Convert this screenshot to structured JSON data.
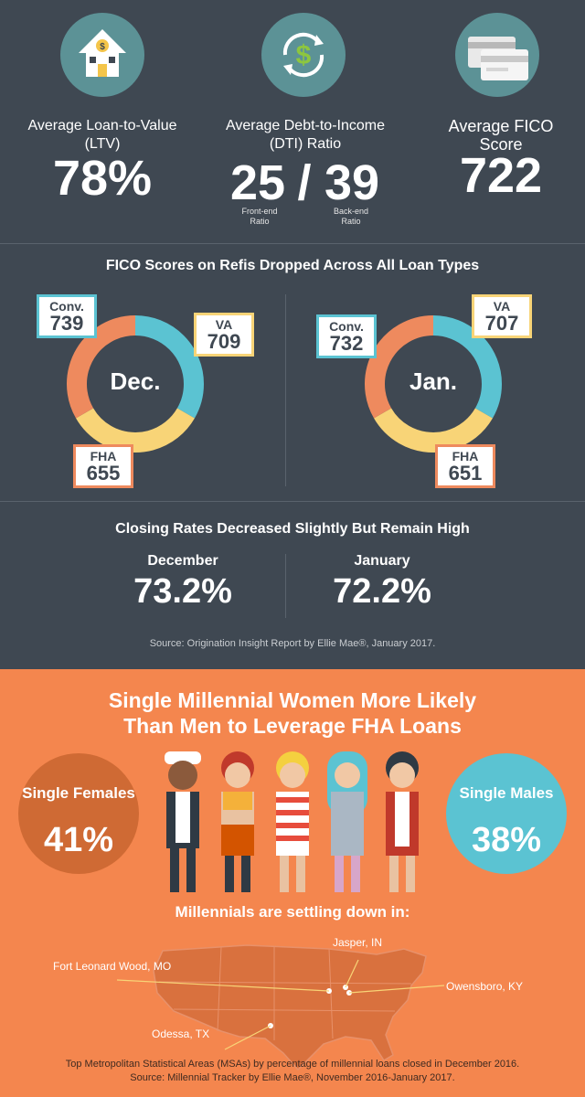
{
  "stats": {
    "ltv_label": "Average Loan-to-Value (LTV)",
    "ltv_value": "78%",
    "dti_label": "Average Debt-to-Income (DTI) Ratio",
    "dti_front": "25",
    "dti_sep": "/",
    "dti_back": "39",
    "dti_front_caption": "Front-end Ratio",
    "dti_back_caption": "Back-end Ratio",
    "fico_label": "Average FICO Score",
    "fico_value": "722"
  },
  "fico_refis": {
    "title": "FICO Scores on Refis Dropped Across All Loan Types",
    "months": [
      {
        "label": "Dec.",
        "conv": "739",
        "va": "709",
        "fha": "655"
      },
      {
        "label": "Jan.",
        "conv": "732",
        "va": "707",
        "fha": "651"
      }
    ],
    "conv_label": "Conv.",
    "va_label": "VA",
    "fha_label": "FHA"
  },
  "closing": {
    "title": "Closing Rates Decreased Slightly But Remain High",
    "dec_label": "December",
    "dec_value": "73.2%",
    "jan_label": "January",
    "jan_value": "72.2%",
    "source": "Source: Origination Insight Report by Ellie Mae®, January 2017."
  },
  "millennials": {
    "title_line1": "Single Millennial Women More Likely",
    "title_line2": "Than Men to Leverage FHA Loans",
    "females_label": "Single Females",
    "females_value": "41%",
    "males_label": "Single Males",
    "males_value": "38%",
    "settling": "Millennials are settling down in:",
    "cities": [
      "Jasper, IN",
      "Fort Leonard Wood, MO",
      "Owensboro, KY",
      "Odessa, TX"
    ],
    "footnote1": "Top Metropolitan Statistical Areas (MSAs) by percentage of millennial loans closed in December 2016.",
    "footnote2": "Source: Millennial Tracker by Ellie Mae®, November 2016-January 2017."
  },
  "colors": {
    "dark_bg": "#3f4852",
    "orange_bg": "#f4864e",
    "conv": "#5bc3d2",
    "va": "#f8d477",
    "fha": "#ee8a5e",
    "icon_circle": "#5c9296"
  }
}
